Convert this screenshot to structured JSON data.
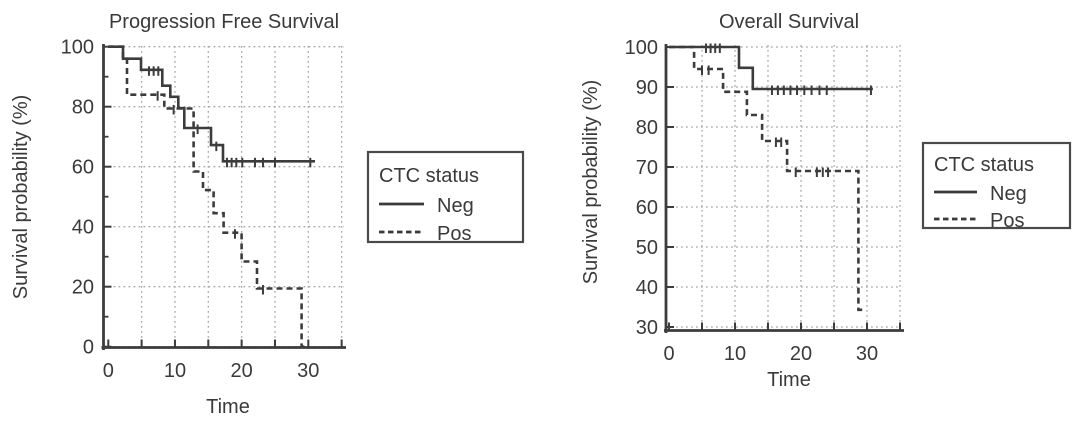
{
  "figure": {
    "background": "#ffffff",
    "text_color": "#3a3a3a",
    "line_color": "#3c3c3c",
    "grid_color": "#a8a8a8"
  },
  "chart_data": [
    {
      "type": "line",
      "subtype": "kaplan-meier-step",
      "title": "Progression Free Survival",
      "xlabel": "Time",
      "ylabel": "Survival probability (%)",
      "xlim": [
        0,
        35
      ],
      "ylim": [
        0,
        100
      ],
      "grid": true,
      "legend_position": "right",
      "x_tick_labels": [
        0,
        10,
        20,
        30
      ],
      "x_minor_ticks": [
        5,
        15,
        25,
        35
      ],
      "y_tick_labels": [
        0,
        20,
        40,
        60,
        80,
        100
      ],
      "y_minor_ticks": [
        10,
        30,
        50,
        70,
        90
      ],
      "x_gridlines": [
        5,
        10,
        15,
        20,
        25,
        30,
        35
      ],
      "y_gridlines": [
        0,
        20,
        40,
        60,
        80,
        100
      ],
      "legend": {
        "title": "CTC status",
        "entries": [
          {
            "label": "Neg",
            "style": "solid"
          },
          {
            "label": "Pos",
            "style": "dashed"
          }
        ]
      },
      "series": [
        {
          "name": "Neg",
          "style": "solid",
          "steps": [
            [
              0,
              100
            ],
            [
              2.2,
              100
            ],
            [
              2.2,
              96
            ],
            [
              4.9,
              96
            ],
            [
              4.9,
              92.3
            ],
            [
              8.1,
              92.3
            ],
            [
              8.1,
              87
            ],
            [
              9.3,
              87
            ],
            [
              9.3,
              83.3
            ],
            [
              10.5,
              83.3
            ],
            [
              10.5,
              79.5
            ],
            [
              11.4,
              79.5
            ],
            [
              11.4,
              72.9
            ],
            [
              15.4,
              72.9
            ],
            [
              15.4,
              67.2
            ],
            [
              17.2,
              67.2
            ],
            [
              17.2,
              61.8
            ],
            [
              31,
              61.8
            ]
          ],
          "censors": [
            [
              6.1,
              92.3
            ],
            [
              6.8,
              92.3
            ],
            [
              7.5,
              92.3
            ],
            [
              13.4,
              72.9
            ],
            [
              16.2,
              67.2
            ],
            [
              17.8,
              61.8
            ],
            [
              18.5,
              61.8
            ],
            [
              19.2,
              61.8
            ],
            [
              20.1,
              61.8
            ],
            [
              22,
              61.8
            ],
            [
              23.2,
              61.8
            ],
            [
              25,
              61.8
            ],
            [
              30.3,
              61.8
            ]
          ]
        },
        {
          "name": "Pos",
          "style": "dashed",
          "steps": [
            [
              0,
              100
            ],
            [
              2.2,
              100
            ],
            [
              2.2,
              96
            ],
            [
              2.8,
              96
            ],
            [
              2.8,
              84
            ],
            [
              8.4,
              84
            ],
            [
              8.4,
              79.4
            ],
            [
              12.8,
              79.4
            ],
            [
              12.8,
              58.4
            ],
            [
              14.2,
              58.4
            ],
            [
              14.2,
              52.2
            ],
            [
              15.8,
              52.2
            ],
            [
              15.8,
              44.5
            ],
            [
              17.3,
              44.5
            ],
            [
              17.3,
              38
            ],
            [
              20,
              38
            ],
            [
              20,
              28.4
            ],
            [
              22.3,
              28.4
            ],
            [
              22.3,
              19.4
            ],
            [
              29,
              19.4
            ],
            [
              29,
              0
            ],
            [
              29.4,
              0
            ]
          ],
          "censors": [
            [
              7.4,
              84
            ],
            [
              9.8,
              79.4
            ],
            [
              19,
              38
            ],
            [
              23.2,
              19.4
            ]
          ]
        }
      ]
    },
    {
      "type": "line",
      "subtype": "kaplan-meier-step",
      "title": "Overall Survival",
      "xlabel": "Time",
      "ylabel": "Survival probability (%)",
      "xlim": [
        0,
        35
      ],
      "ylim": [
        30,
        100
      ],
      "grid": true,
      "legend_position": "right",
      "x_tick_labels": [
        0,
        10,
        20,
        30
      ],
      "x_minor_ticks": [
        5,
        15,
        25,
        35
      ],
      "y_tick_labels": [
        30,
        40,
        50,
        60,
        70,
        80,
        90,
        100
      ],
      "y_minor_ticks": [],
      "x_gridlines": [
        5,
        10,
        15,
        20,
        25,
        30,
        35
      ],
      "y_gridlines": [
        30,
        40,
        50,
        60,
        70,
        80,
        90,
        100
      ],
      "legend": {
        "title": "CTC status",
        "entries": [
          {
            "label": "Neg",
            "style": "solid"
          },
          {
            "label": "Pos",
            "style": "dashed"
          }
        ]
      },
      "series": [
        {
          "name": "Neg",
          "style": "solid",
          "steps": [
            [
              0,
              100
            ],
            [
              10.6,
              100
            ],
            [
              10.6,
              94.8
            ],
            [
              12.7,
              94.8
            ],
            [
              12.7,
              89.5
            ],
            [
              30.9,
              89.5
            ]
          ],
          "censors": [
            [
              5.6,
              100
            ],
            [
              6.3,
              100
            ],
            [
              7,
              100
            ],
            [
              7.7,
              100
            ],
            [
              15.6,
              89.5
            ],
            [
              16.5,
              89.5
            ],
            [
              17.4,
              89.5
            ],
            [
              18.4,
              89.5
            ],
            [
              19.4,
              89.5
            ],
            [
              20.5,
              89.5
            ],
            [
              21.6,
              89.5
            ],
            [
              22.8,
              89.5
            ],
            [
              23.9,
              89.5
            ],
            [
              30.6,
              89.5
            ]
          ]
        },
        {
          "name": "Pos",
          "style": "dashed",
          "steps": [
            [
              0,
              100
            ],
            [
              3.8,
              100
            ],
            [
              3.8,
              94.5
            ],
            [
              8.2,
              94.5
            ],
            [
              8.2,
              88.8
            ],
            [
              11.8,
              88.8
            ],
            [
              11.8,
              83
            ],
            [
              14.1,
              83
            ],
            [
              14.1,
              76.5
            ],
            [
              17.9,
              76.5
            ],
            [
              17.9,
              69
            ],
            [
              28.7,
              69
            ],
            [
              28.7,
              34.3
            ],
            [
              29.7,
              34.3
            ]
          ],
          "censors": [
            [
              5,
              94.5
            ],
            [
              6,
              94.5
            ],
            [
              16.2,
              76.5
            ],
            [
              17,
              76.5
            ],
            [
              19.2,
              69
            ],
            [
              22.4,
              69
            ],
            [
              23.3,
              69
            ],
            [
              24.1,
              69
            ]
          ]
        }
      ]
    }
  ]
}
